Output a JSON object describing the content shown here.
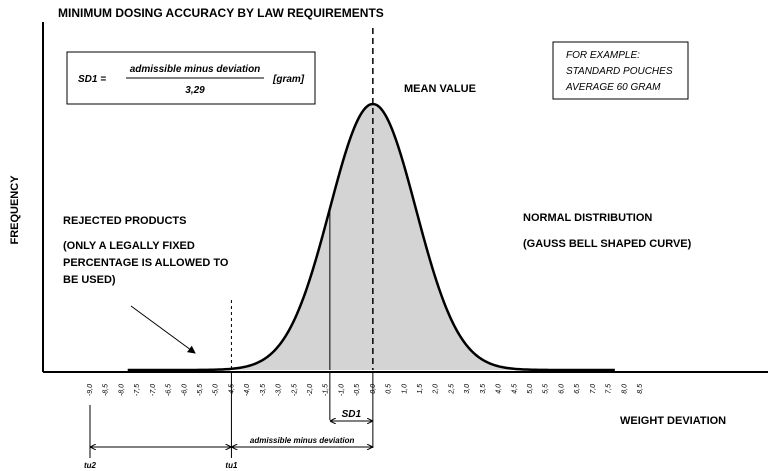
{
  "chart_data": {
    "type": "area",
    "title": "MINIMUM DOSING ACCURACY BY LAW REQUIREMENTS",
    "xlabel": "WEIGHT DEVIATION",
    "ylabel": "FREQUENCY",
    "x_ticks": [
      "-9,0",
      "-8,5",
      "-8,0",
      "-7,5",
      "-7,0",
      "-6,5",
      "-6,0",
      "-5,5",
      "-5,0",
      "-4,5",
      "-4,0",
      "-3,5",
      "-3,0",
      "-2,5",
      "-2,0",
      "-1,5",
      "-1,0",
      "-0,5",
      "0,0",
      "0,5",
      "1,0",
      "1,5",
      "2,0",
      "2,5",
      "3,0",
      "3,5",
      "4,0",
      "4,5",
      "5,0",
      "5,5",
      "6,0",
      "6,5",
      "7,0",
      "7,5",
      "8,0",
      "8,5"
    ],
    "xlim": [
      -9.0,
      8.5
    ],
    "mean": 0.0,
    "sd": 1.368,
    "tu1": -4.5,
    "tu2": -9.0,
    "sd1_line": -1.368,
    "formula": {
      "lhs": "SD1 =",
      "numerator": "admissible minus deviation",
      "denominator": "3,29",
      "unit": "[gram]"
    },
    "example": [
      "FOR EXAMPLE:",
      "STANDARD POUCHES",
      "AVERAGE 60 GRAM"
    ],
    "annotations": {
      "mean_value": "MEAN VALUE",
      "rejected": [
        "REJECTED PRODUCTS",
        "(ONLY A LEGALLY FIXED",
        "PERCENTAGE IS ALLOWED TO",
        "BE USED)"
      ],
      "normal": [
        "NORMAL DISTRIBUTION",
        "(GAUSS BELL SHAPED CURVE)"
      ],
      "sd1": "SD1",
      "admissible": "admissible minus deviation",
      "tu1": "tu1",
      "tu2": "tu2"
    },
    "colors": {
      "area": "#d4d4d4",
      "rejected": "#4a7bea",
      "curve": "#000000"
    }
  }
}
